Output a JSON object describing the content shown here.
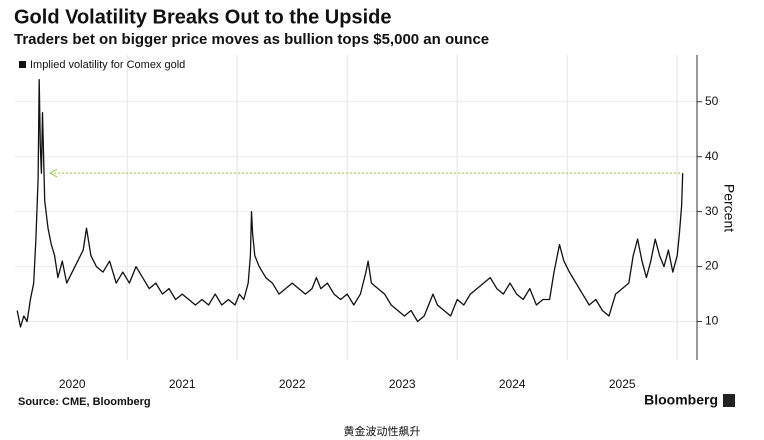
{
  "chart_data": {
    "type": "line",
    "title": "Gold Volatility Breaks Out to the Upside",
    "subtitle": "Traders bet on bigger price moves as bullion tops $5,000 an ounce",
    "y_axis_label": "Percent",
    "source": "Source: CME, Bloomberg",
    "brand": "Bloomberg",
    "caption": "黄金波动性飙升",
    "legend": "top-left",
    "grid": true,
    "xlim": [
      2019.98,
      2026.18
    ],
    "ylim": [
      3,
      58.5
    ],
    "yticks": [
      10,
      20,
      30,
      40,
      50
    ],
    "xticks": [
      {
        "value": 2020.5,
        "label": "2020"
      },
      {
        "value": 2021.5,
        "label": "2021"
      },
      {
        "value": 2022.5,
        "label": "2022"
      },
      {
        "value": 2023.5,
        "label": "2023"
      },
      {
        "value": 2024.5,
        "label": "2024"
      },
      {
        "value": 2025.5,
        "label": "2025"
      }
    ],
    "xgrid": [
      2021,
      2022,
      2023,
      2024,
      2025,
      2026
    ],
    "reference_line": {
      "y": 37,
      "x": [
        2020.3,
        2026.05
      ],
      "color": "#a6d05a"
    },
    "series": [
      {
        "name": "Implied volatility for Comex gold",
        "color": "#111111",
        "x": [
          2020.0,
          2020.03,
          2020.06,
          2020.09,
          2020.12,
          2020.15,
          2020.17,
          2020.19,
          2020.2,
          2020.21,
          2020.22,
          2020.23,
          2020.25,
          2020.28,
          2020.31,
          2020.34,
          2020.37,
          2020.41,
          2020.45,
          2020.5,
          2020.55,
          2020.6,
          2020.63,
          2020.67,
          2020.72,
          2020.78,
          2020.84,
          2020.9,
          2020.96,
          2021.02,
          2021.08,
          2021.14,
          2021.2,
          2021.26,
          2021.32,
          2021.38,
          2021.44,
          2021.5,
          2021.56,
          2021.62,
          2021.68,
          2021.74,
          2021.8,
          2021.86,
          2021.92,
          2021.98,
          2022.02,
          2022.06,
          2022.1,
          2022.12,
          2022.13,
          2022.14,
          2022.16,
          2022.2,
          2022.26,
          2022.32,
          2022.38,
          2022.44,
          2022.5,
          2022.56,
          2022.62,
          2022.68,
          2022.72,
          2022.76,
          2022.82,
          2022.88,
          2022.94,
          2023.0,
          2023.06,
          2023.12,
          2023.17,
          2023.19,
          2023.22,
          2023.28,
          2023.34,
          2023.4,
          2023.46,
          2023.52,
          2023.58,
          2023.64,
          2023.7,
          2023.74,
          2023.78,
          2023.82,
          2023.88,
          2023.94,
          2024.0,
          2024.06,
          2024.12,
          2024.18,
          2024.24,
          2024.3,
          2024.36,
          2024.42,
          2024.48,
          2024.54,
          2024.6,
          2024.66,
          2024.72,
          2024.78,
          2024.84,
          2024.88,
          2024.93,
          2024.97,
          2025.02,
          2025.08,
          2025.14,
          2025.2,
          2025.26,
          2025.32,
          2025.38,
          2025.44,
          2025.5,
          2025.56,
          2025.6,
          2025.64,
          2025.68,
          2025.72,
          2025.76,
          2025.8,
          2025.84,
          2025.88,
          2025.92,
          2025.96,
          2026.0,
          2026.02,
          2026.04,
          2026.05
        ],
        "values": [
          12,
          9,
          11,
          10,
          14,
          17,
          25,
          36,
          54,
          42,
          37,
          48,
          32,
          27,
          24,
          22,
          18,
          21,
          17,
          19,
          21,
          23,
          27,
          22,
          20,
          19,
          21,
          17,
          19,
          17,
          20,
          18,
          16,
          17,
          15,
          16,
          14,
          15,
          14,
          13,
          14,
          13,
          15,
          13,
          14,
          13,
          15,
          14,
          17,
          22,
          30,
          26,
          22,
          20,
          18,
          17,
          15,
          16,
          17,
          16,
          15,
          16,
          18,
          16,
          17,
          15,
          14,
          15,
          13,
          15,
          19,
          21,
          17,
          16,
          15,
          13,
          12,
          11,
          12,
          10,
          11,
          13,
          15,
          13,
          12,
          11,
          14,
          13,
          15,
          16,
          17,
          18,
          16,
          15,
          17,
          15,
          14,
          16,
          13,
          14,
          14,
          19,
          24,
          21,
          19,
          17,
          15,
          13,
          14,
          12,
          11,
          15,
          16,
          17,
          22,
          25,
          21,
          18,
          21,
          25,
          22,
          20,
          23,
          19,
          22,
          26,
          31,
          37
        ]
      }
    ]
  }
}
